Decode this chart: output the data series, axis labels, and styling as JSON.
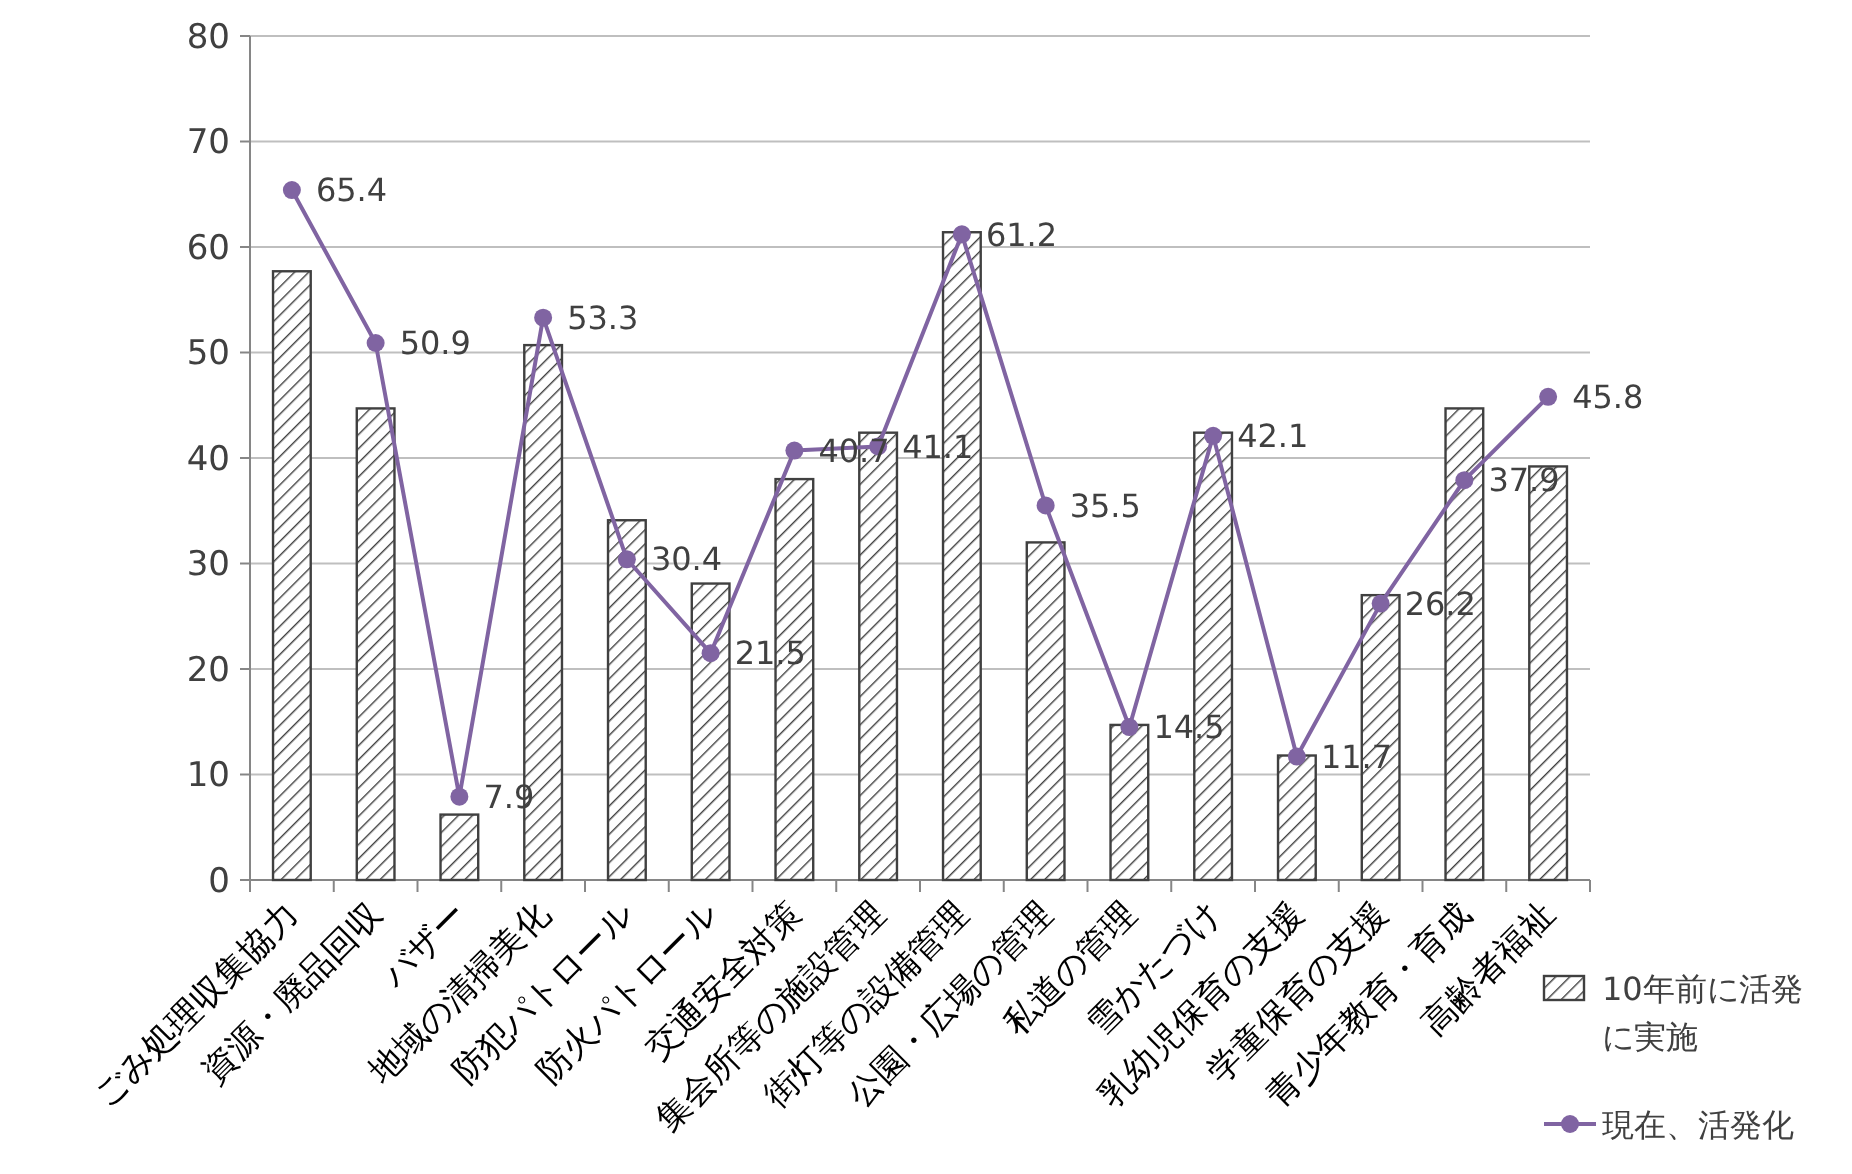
{
  "chart_data": {
    "type": "bar",
    "categories": [
      "ごみ処理収集協力",
      "資源・廃品回収",
      "バザー",
      "地域の清掃美化",
      "防犯パトロール",
      "防火パトロール",
      "交通安全対策",
      "集会所等の施設管理",
      "街灯等の設備管理",
      "公園・広場の管理",
      "私道の管理",
      "雪かたづけ",
      "乳幼児保育の支援",
      "学童保育の支援",
      "青少年教育・育成",
      "高齢者福祉"
    ],
    "series": [
      {
        "name": "10年前に活発に実施",
        "color": "#404040",
        "values": [
          57.7,
          44.7,
          6.2,
          50.7,
          34.1,
          28.1,
          38.0,
          42.4,
          61.4,
          32.0,
          14.7,
          42.4,
          11.8,
          27.0,
          44.7,
          39.2
        ]
      },
      {
        "name": "現在、活発化",
        "type": "line",
        "color": "#8064a2",
        "marker": "circle",
        "values": [
          65.4,
          50.9,
          7.9,
          53.3,
          30.4,
          21.5,
          40.7,
          41.1,
          61.2,
          35.5,
          14.5,
          42.1,
          11.7,
          26.2,
          37.9,
          45.8
        ],
        "value_labels": [
          "65.4",
          "50.9",
          "7.9",
          "53.3",
          "30.4",
          "21.5",
          "40.7",
          "41.1",
          "61.2",
          "35.5",
          "14.5",
          "42.1",
          "11.7",
          "26.2",
          "37.9",
          "45.8"
        ]
      }
    ],
    "ylim": [
      0,
      80
    ],
    "yticks": [
      0,
      10,
      20,
      30,
      40,
      50,
      60,
      70,
      80
    ],
    "grid": "y",
    "legend": "bottom right"
  }
}
